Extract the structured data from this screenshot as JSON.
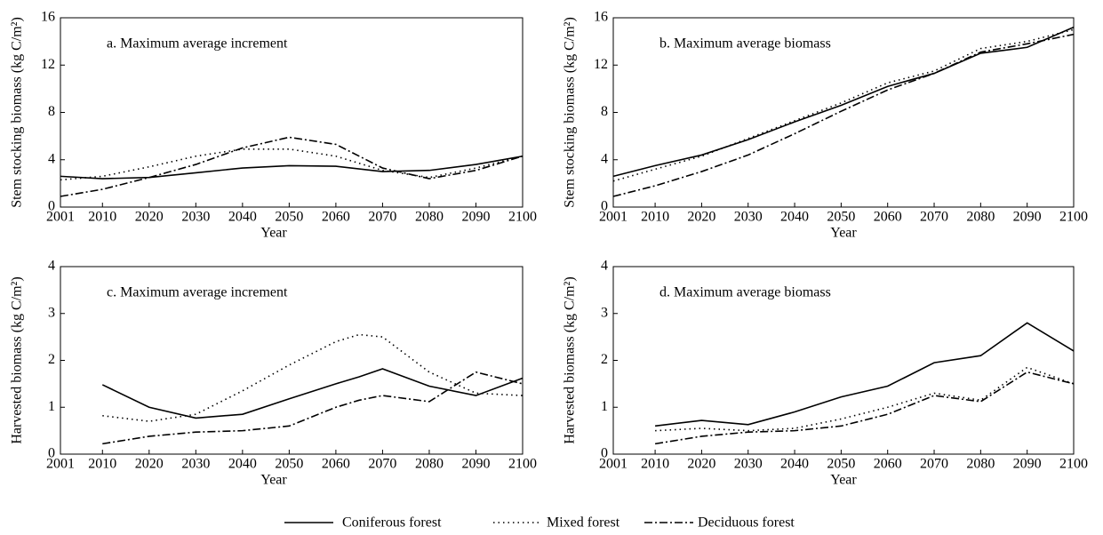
{
  "chart_data": [
    {
      "type": "line",
      "title": "a. Maximum average increment",
      "xlabel": "Year",
      "ylabel": "Stem stocking biomass (kg C/m²)",
      "x": [
        2001,
        2010,
        2020,
        2030,
        2040,
        2050,
        2060,
        2070,
        2080,
        2090,
        2100
      ],
      "series": [
        {
          "name": "Coniferous forest",
          "color": "#000000",
          "style": "solid",
          "values": [
            2.6,
            2.4,
            2.5,
            2.9,
            3.3,
            3.5,
            3.45,
            3.0,
            3.1,
            3.6,
            4.3
          ]
        },
        {
          "name": "Mixed forest",
          "color": "#000000",
          "style": "dotted",
          "values": [
            2.3,
            2.6,
            3.4,
            4.3,
            4.9,
            4.9,
            4.3,
            3.1,
            2.5,
            3.3,
            4.3
          ]
        },
        {
          "name": "Deciduous forest",
          "color": "#000000",
          "style": "dashdot",
          "values": [
            0.9,
            1.5,
            2.5,
            3.6,
            5.0,
            5.9,
            5.3,
            3.3,
            2.4,
            3.1,
            4.3
          ]
        }
      ],
      "xlim": [
        2001,
        2100
      ],
      "xticks": [
        2001,
        2010,
        2020,
        2030,
        2040,
        2050,
        2060,
        2070,
        2080,
        2090,
        2100
      ],
      "ylim": [
        0,
        16
      ],
      "yticks": [
        0,
        4,
        8,
        12,
        16
      ]
    },
    {
      "type": "line",
      "title": "b. Maximum average biomass",
      "xlabel": "Year",
      "ylabel": "Stem stocking biomass (kg C/m²)",
      "x": [
        2001,
        2010,
        2020,
        2030,
        2040,
        2050,
        2060,
        2070,
        2080,
        2090,
        2100
      ],
      "series": [
        {
          "name": "Coniferous forest",
          "color": "#000000",
          "style": "solid",
          "values": [
            2.6,
            3.5,
            4.4,
            5.7,
            7.2,
            8.6,
            10.2,
            11.3,
            13.0,
            13.5,
            15.2
          ]
        },
        {
          "name": "Mixed forest",
          "color": "#000000",
          "style": "dotted",
          "values": [
            2.2,
            3.2,
            4.3,
            5.8,
            7.3,
            8.8,
            10.5,
            11.5,
            13.4,
            14.0,
            15.0
          ]
        },
        {
          "name": "Deciduous forest",
          "color": "#000000",
          "style": "dashdot",
          "values": [
            0.9,
            1.8,
            3.0,
            4.4,
            6.2,
            8.1,
            9.9,
            11.3,
            13.1,
            13.8,
            14.6
          ]
        }
      ],
      "xlim": [
        2001,
        2100
      ],
      "xticks": [
        2001,
        2010,
        2020,
        2030,
        2040,
        2050,
        2060,
        2070,
        2080,
        2090,
        2100
      ],
      "ylim": [
        0,
        16
      ],
      "yticks": [
        0,
        4,
        8,
        12,
        16
      ]
    },
    {
      "type": "line",
      "title": "c. Maximum average increment",
      "xlabel": "Year",
      "ylabel": "Harvested biomass (kg C/m²)",
      "x": [
        2010,
        2020,
        2030,
        2040,
        2050,
        2060,
        2065,
        2070,
        2080,
        2090,
        2100
      ],
      "series": [
        {
          "name": "Coniferous forest",
          "color": "#000000",
          "style": "solid",
          "values": [
            1.48,
            1.0,
            0.77,
            0.85,
            1.18,
            1.5,
            1.65,
            1.82,
            1.45,
            1.25,
            1.62
          ]
        },
        {
          "name": "Mixed forest",
          "color": "#000000",
          "style": "dotted",
          "values": [
            0.82,
            0.7,
            0.85,
            1.35,
            1.9,
            2.4,
            2.55,
            2.5,
            1.75,
            1.3,
            1.25
          ]
        },
        {
          "name": "Deciduous forest",
          "color": "#000000",
          "style": "dashdot",
          "values": [
            0.22,
            0.38,
            0.47,
            0.5,
            0.6,
            1.0,
            1.15,
            1.25,
            1.12,
            1.75,
            1.5
          ]
        }
      ],
      "xlim": [
        2001,
        2100
      ],
      "xticks": [
        2001,
        2010,
        2020,
        2030,
        2040,
        2050,
        2060,
        2070,
        2080,
        2090,
        2100
      ],
      "ylim": [
        0,
        4
      ],
      "yticks": [
        0,
        1,
        2,
        3,
        4
      ]
    },
    {
      "type": "line",
      "title": "d. Maximum average biomass",
      "xlabel": "Year",
      "ylabel": "Harvested biomass (kg C/m²)",
      "x": [
        2010,
        2020,
        2030,
        2040,
        2050,
        2060,
        2070,
        2080,
        2090,
        2100
      ],
      "series": [
        {
          "name": "Coniferous forest",
          "color": "#000000",
          "style": "solid",
          "values": [
            0.6,
            0.72,
            0.63,
            0.9,
            1.22,
            1.45,
            1.95,
            2.1,
            2.8,
            2.2
          ]
        },
        {
          "name": "Mixed forest",
          "color": "#000000",
          "style": "dotted",
          "values": [
            0.5,
            0.55,
            0.5,
            0.55,
            0.75,
            1.0,
            1.3,
            1.15,
            1.85,
            1.5
          ]
        },
        {
          "name": "Deciduous forest",
          "color": "#000000",
          "style": "dashdot",
          "values": [
            0.22,
            0.38,
            0.47,
            0.5,
            0.6,
            0.85,
            1.25,
            1.12,
            1.75,
            1.5
          ]
        }
      ],
      "xlim": [
        2001,
        2100
      ],
      "xticks": [
        2001,
        2010,
        2020,
        2030,
        2040,
        2050,
        2060,
        2070,
        2080,
        2090,
        2100
      ],
      "ylim": [
        0,
        4
      ],
      "yticks": [
        0,
        1,
        2,
        3,
        4
      ]
    }
  ]
}
